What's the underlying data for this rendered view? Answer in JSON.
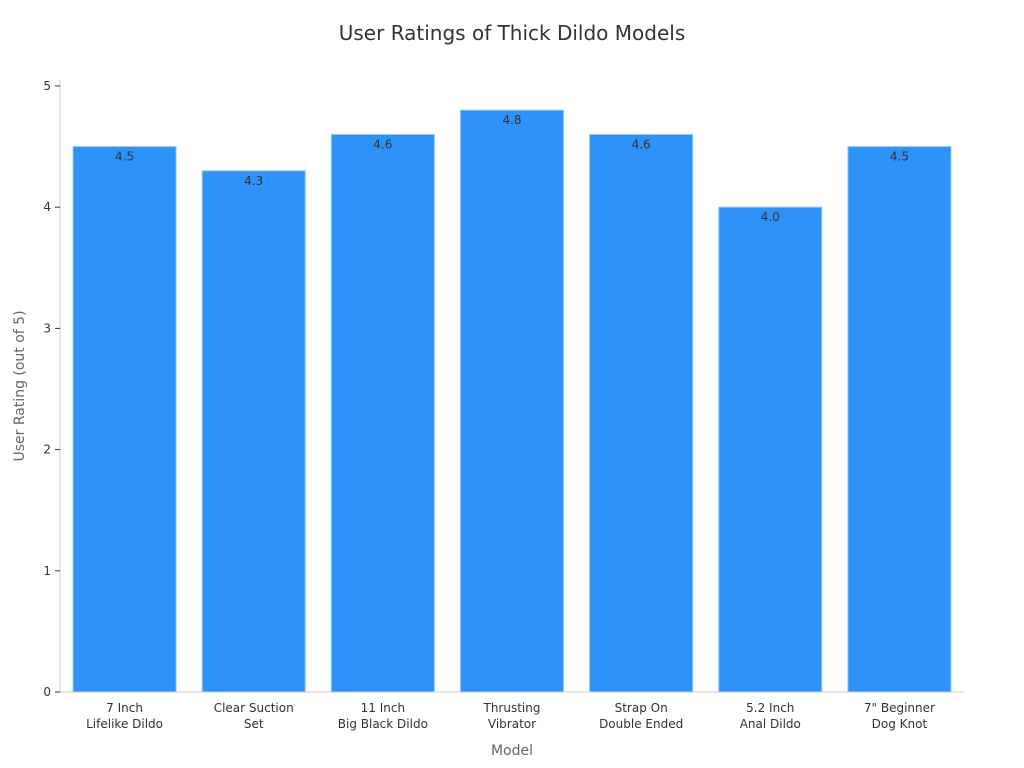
{
  "chart_data": {
    "type": "bar",
    "title": "User Ratings of Thick Dildo Models",
    "xlabel": "Model",
    "ylabel": "User Rating (out of 5)",
    "categories": [
      [
        "7 Inch",
        "Lifelike Dildo"
      ],
      [
        "Clear Suction",
        "Set"
      ],
      [
        "11 Inch",
        "Big Black Dildo"
      ],
      [
        "Thrusting",
        "Vibrator"
      ],
      [
        "Strap On",
        "Double Ended"
      ],
      [
        "5.2 Inch",
        "Anal Dildo"
      ],
      [
        "7\" Beginner",
        "Dog Knot"
      ]
    ],
    "values": [
      4.5,
      4.3,
      4.6,
      4.8,
      4.6,
      4.0,
      4.5
    ],
    "value_labels": [
      "4.5",
      "4.3",
      "4.6",
      "4.8",
      "4.6",
      "4.0",
      "4.5"
    ],
    "ylim": [
      0,
      5
    ],
    "yticks": [
      0,
      1,
      2,
      3,
      4,
      5
    ],
    "grid": false,
    "legend": "none",
    "colors": {
      "bar": "#2e93f8",
      "bar_edge": "#8fc3f5",
      "axis": "#cccccc",
      "tick": "#333333"
    }
  }
}
